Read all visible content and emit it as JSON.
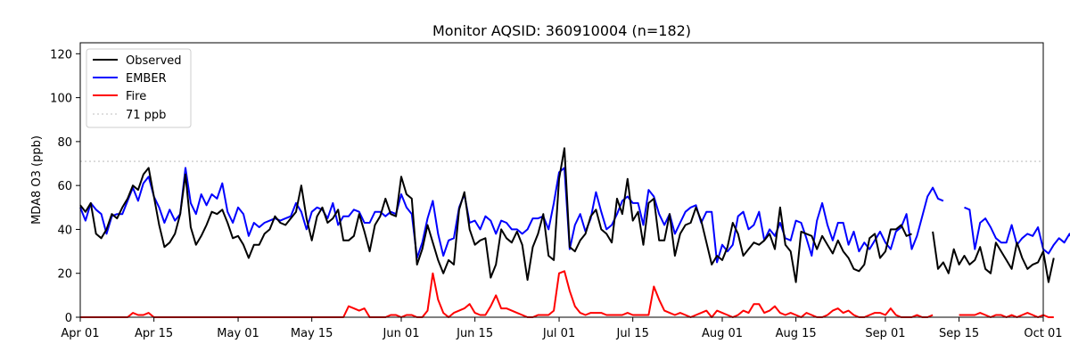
{
  "chart_data": {
    "type": "line",
    "title": "Monitor AQSID: 360910004 (n=182)",
    "xlabel": "",
    "ylabel": "MDA8 O3 (ppb)",
    "x_start": "2023-04-01",
    "x_end": "2023-10-01",
    "ylim": [
      0,
      125
    ],
    "yticks": [
      0,
      20,
      40,
      60,
      80,
      100,
      120
    ],
    "xticks": [
      {
        "date": "2023-04-01",
        "label": "Apr 01"
      },
      {
        "date": "2023-04-15",
        "label": "Apr 15"
      },
      {
        "date": "2023-05-01",
        "label": "May 01"
      },
      {
        "date": "2023-05-15",
        "label": "May 15"
      },
      {
        "date": "2023-06-01",
        "label": "Jun 01"
      },
      {
        "date": "2023-06-15",
        "label": "Jun 15"
      },
      {
        "date": "2023-07-01",
        "label": "Jul 01"
      },
      {
        "date": "2023-07-15",
        "label": "Jul 15"
      },
      {
        "date": "2023-08-01",
        "label": "Aug 01"
      },
      {
        "date": "2023-08-15",
        "label": "Aug 15"
      },
      {
        "date": "2023-09-01",
        "label": "Sep 01"
      },
      {
        "date": "2023-09-15",
        "label": "Sep 15"
      },
      {
        "date": "2023-10-01",
        "label": "Oct 01"
      }
    ],
    "grid": false,
    "legend_position": "top-left",
    "threshold": {
      "value": 71,
      "label": "71 ppb",
      "color": "#cccccc"
    },
    "series": [
      {
        "name": "Observed",
        "color": "#000000",
        "values": [
          51,
          48,
          52,
          38,
          36,
          40,
          47,
          45,
          50,
          54,
          60,
          58,
          65,
          68,
          55,
          42,
          32,
          34,
          38,
          47,
          65,
          41,
          33,
          37,
          42,
          48,
          47,
          49,
          43,
          36,
          37,
          33,
          27,
          33,
          33,
          38,
          40,
          46,
          43,
          42,
          45,
          48,
          60,
          45,
          35,
          46,
          50,
          43,
          45,
          49,
          35,
          35,
          37,
          47,
          39,
          30,
          42,
          46,
          54,
          47,
          46,
          64,
          56,
          54,
          24,
          31,
          42,
          34,
          26,
          20,
          26,
          24,
          49,
          57,
          40,
          33,
          35,
          36,
          18,
          24,
          40,
          36,
          34,
          39,
          33,
          17,
          32,
          38,
          47,
          28,
          26,
          63,
          77,
          32,
          30,
          35,
          38,
          46,
          49,
          40,
          38,
          34,
          54,
          47,
          63,
          44,
          48,
          33,
          52,
          54,
          35,
          35,
          47,
          28,
          38,
          42,
          43,
          50,
          44,
          34,
          24,
          28,
          26,
          32,
          43,
          38,
          28,
          31,
          34,
          33,
          35,
          38,
          31,
          50,
          33,
          30,
          16,
          39,
          38,
          37,
          31,
          37,
          33,
          29,
          35,
          30,
          27,
          22,
          21,
          24,
          36,
          38,
          27,
          30,
          40,
          40,
          42,
          37,
          38,
          null,
          null,
          null,
          39,
          22,
          25,
          20,
          31,
          24,
          28,
          24,
          26,
          32,
          22,
          20,
          34,
          30,
          26,
          22,
          34,
          27,
          22,
          24,
          25,
          30,
          16,
          27
        ]
      },
      {
        "name": "EMBER",
        "color": "#0000ff",
        "values": [
          50,
          44,
          52,
          49,
          47,
          38,
          46,
          47,
          47,
          53,
          59,
          53,
          61,
          64,
          55,
          50,
          43,
          49,
          44,
          47,
          68,
          52,
          47,
          56,
          51,
          56,
          54,
          61,
          48,
          43,
          50,
          47,
          37,
          43,
          41,
          43,
          44,
          45,
          44,
          45,
          46,
          52,
          48,
          40,
          48,
          50,
          49,
          45,
          52,
          42,
          46,
          46,
          49,
          48,
          43,
          43,
          48,
          48,
          46,
          48,
          47,
          56,
          50,
          47,
          27,
          34,
          45,
          53,
          38,
          28,
          35,
          36,
          50,
          56,
          43,
          44,
          40,
          46,
          44,
          38,
          44,
          43,
          40,
          40,
          38,
          40,
          45,
          45,
          46,
          40,
          52,
          66,
          68,
          31,
          42,
          47,
          39,
          45,
          57,
          48,
          40,
          42,
          47,
          53,
          55,
          52,
          52,
          42,
          58,
          55,
          47,
          42,
          47,
          38,
          43,
          48,
          50,
          51,
          43,
          48,
          48,
          25,
          33,
          30,
          33,
          46,
          48,
          40,
          42,
          48,
          35,
          40,
          37,
          43,
          36,
          35,
          44,
          43,
          36,
          28,
          44,
          52,
          42,
          35,
          43,
          43,
          33,
          39,
          30,
          34,
          31,
          35,
          39,
          34,
          31,
          39,
          41,
          47,
          31,
          37,
          46,
          55,
          59,
          54,
          53,
          null,
          null,
          null,
          50,
          49,
          31,
          43,
          45,
          41,
          36,
          34,
          34,
          42,
          33,
          36,
          38,
          37,
          41,
          31,
          29,
          33,
          36,
          34,
          38,
          33
        ]
      },
      {
        "name": "Fire",
        "color": "#ff0000",
        "values": [
          0,
          0,
          0,
          0,
          0,
          0,
          0,
          0,
          0,
          0,
          2,
          1,
          1,
          2,
          0,
          0,
          0,
          0,
          0,
          0,
          0,
          0,
          0,
          0,
          0,
          0,
          0,
          0,
          0,
          0,
          0,
          0,
          0,
          0,
          0,
          0,
          0,
          0,
          0,
          0,
          0,
          0,
          0,
          0,
          0,
          0,
          0,
          0,
          0,
          0,
          0,
          5,
          4,
          3,
          4,
          0,
          0,
          0,
          0,
          1,
          1,
          0,
          1,
          1,
          0,
          0,
          3,
          20,
          8,
          2,
          0,
          2,
          3,
          4,
          6,
          2,
          1,
          1,
          5,
          10,
          4,
          4,
          3,
          2,
          1,
          0,
          0,
          1,
          1,
          1,
          3,
          20,
          21,
          12,
          5,
          2,
          1,
          2,
          2,
          2,
          1,
          1,
          1,
          1,
          2,
          1,
          1,
          1,
          1,
          14,
          8,
          3,
          2,
          1,
          2,
          1,
          0,
          1,
          2,
          3,
          0,
          3,
          2,
          1,
          0,
          1,
          3,
          2,
          6,
          6,
          2,
          3,
          5,
          2,
          1,
          2,
          1,
          0,
          2,
          1,
          0,
          0,
          1,
          3,
          4,
          2,
          3,
          1,
          0,
          0,
          1,
          2,
          2,
          1,
          4,
          1,
          0,
          0,
          0,
          1,
          0,
          0,
          1,
          null,
          null,
          null,
          null,
          1,
          1,
          1,
          1,
          2,
          1,
          0,
          1,
          1,
          0,
          1,
          0,
          1,
          2,
          1,
          0,
          1,
          0,
          0
        ]
      }
    ]
  }
}
